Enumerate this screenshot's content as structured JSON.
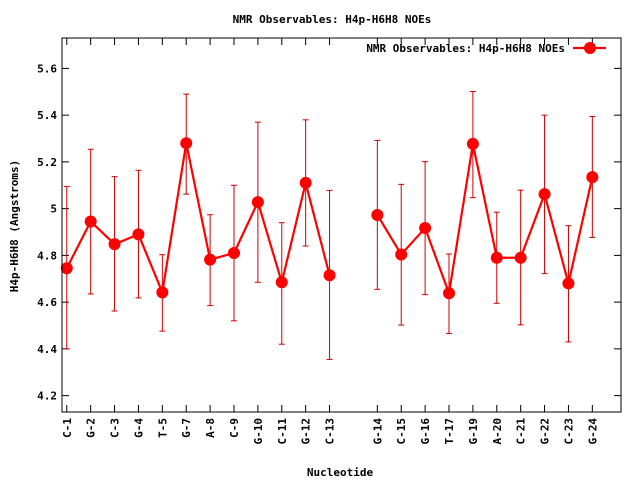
{
  "chart_data": {
    "type": "line",
    "title": "NMR Observables: H4p-H6H8 NOEs",
    "xlabel": "Nucleotide",
    "ylabel": "H4p-H6H8 (Angstroms)",
    "ylim": [
      4.13,
      5.73
    ],
    "yticks": [
      4.2,
      4.4,
      4.6,
      4.8,
      5,
      5.2,
      5.4,
      5.6
    ],
    "ytick_labels": [
      "4.2",
      "4.4",
      "4.6",
      "4.8",
      "5",
      "5.2",
      "5.4",
      "5.6"
    ],
    "xlim": [
      0.8,
      24.2
    ],
    "grid": false,
    "legend": {
      "position": "top-right",
      "entries": [
        "NMR Observables: H4p-H6H8 NOEs"
      ]
    },
    "colors": {
      "series": "#ff0000",
      "errorbar": "#cc0000",
      "axes": "#000000"
    },
    "categories": [
      "C-1",
      "G-2",
      "C-3",
      "G-4",
      "T-5",
      "G-7",
      "A-8",
      "C-9",
      "G-10",
      "C-11",
      "G-12",
      "C-13",
      "G-14",
      "C-15",
      "G-16",
      "T-17",
      "G-19",
      "A-20",
      "C-21",
      "G-22",
      "C-23",
      "G-24"
    ],
    "x": [
      1,
      2,
      3,
      4,
      5,
      6,
      7,
      8,
      9,
      10,
      11,
      12,
      14,
      15,
      16,
      17,
      18,
      19,
      20,
      21,
      22,
      23
    ],
    "series": [
      {
        "name": "NMR Observables: H4p-H6H8 NOEs",
        "values": [
          4.745,
          4.945,
          4.848,
          4.89,
          4.642,
          5.28,
          4.782,
          4.81,
          5.028,
          4.685,
          5.11,
          4.715,
          4.973,
          4.804,
          4.917,
          4.638,
          5.277,
          4.79,
          4.79,
          5.062,
          4.68,
          5.135
        ],
        "err_low": [
          4.4,
          4.635,
          4.562,
          4.618,
          4.476,
          5.062,
          4.585,
          4.52,
          4.685,
          4.42,
          4.84,
          4.355,
          4.655,
          4.502,
          4.632,
          4.466,
          5.047,
          4.595,
          4.503,
          4.722,
          4.43,
          4.877
        ],
        "err_high": [
          5.095,
          5.254,
          5.137,
          5.164,
          4.803,
          5.49,
          4.974,
          5.1,
          5.37,
          4.94,
          5.38,
          5.078,
          5.292,
          5.104,
          5.201,
          4.806,
          5.501,
          4.985,
          5.079,
          5.4,
          4.927,
          5.394
        ]
      }
    ]
  }
}
